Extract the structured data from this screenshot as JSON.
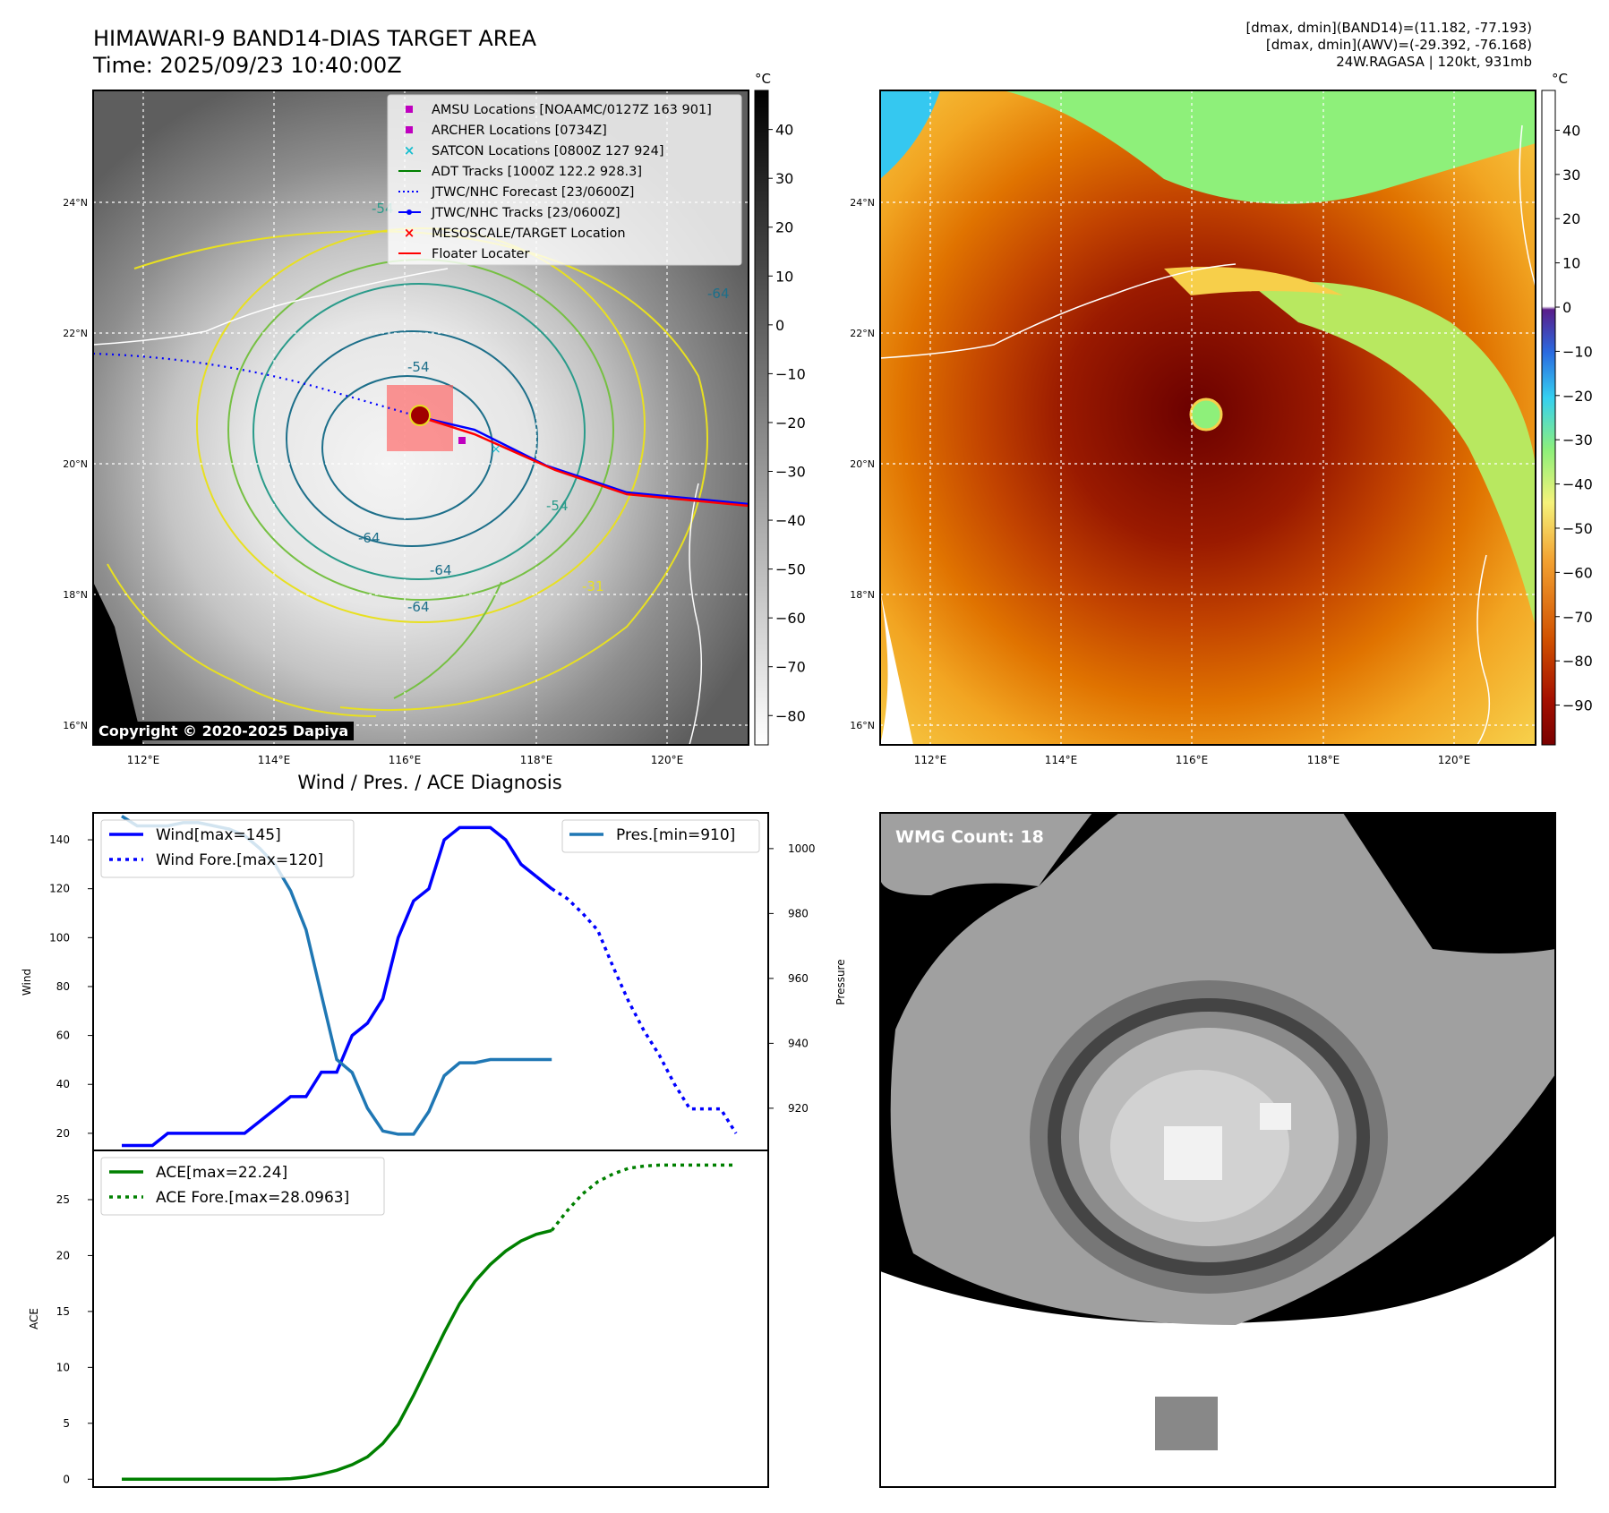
{
  "header": {
    "title_line1": "HIMAWARI-9 BAND14-DIAS TARGET AREA",
    "title_line2": "Time: 2025/09/23 10:40:00Z",
    "stats_line1": "[dmax, dmin](BAND14)=(11.182, -77.193)",
    "stats_line2": "[dmax, dmin](AWV)=(-29.392, -76.168)",
    "stats_line3": "24W.RAGASA | 120kt, 931mb"
  },
  "maps": {
    "unit": "°C",
    "lon_ticks": [
      "112°E",
      "114°E",
      "116°E",
      "118°E",
      "120°E"
    ],
    "lat_ticks": [
      "16°N",
      "18°N",
      "20°N",
      "22°N",
      "24°N"
    ],
    "left_colorbar_ticks": [
      "40",
      "30",
      "20",
      "10",
      "0",
      "−10",
      "−20",
      "−30",
      "−40",
      "−50",
      "−60",
      "−70",
      "−80"
    ],
    "right_colorbar_ticks": [
      "40",
      "30",
      "20",
      "10",
      "0",
      "−10",
      "−20",
      "−30",
      "−40",
      "−50",
      "−60",
      "−70",
      "−80",
      "−90"
    ],
    "legend": [
      {
        "label": "AMSU Locations [NOAAMC/0127Z 163 901]",
        "marker": "square",
        "color": "#bf00bf"
      },
      {
        "label": "ARCHER Locations [0734Z]",
        "marker": "square",
        "color": "#bf00bf"
      },
      {
        "label": "SATCON Locations [0800Z 127 924]",
        "marker": "x",
        "color": "#17becf"
      },
      {
        "label": "ADT Tracks [1000Z 122.2 928.3]",
        "marker": "line",
        "color": "#008000"
      },
      {
        "label": "JTWC/NHC Forecast [23/0600Z]",
        "marker": "dotted",
        "color": "#0000ff"
      },
      {
        "label": "JTWC/NHC Tracks [23/0600Z]",
        "marker": "line-dot",
        "color": "#0000ff"
      },
      {
        "label": "MESOSCALE/TARGET Location",
        "marker": "x",
        "color": "#ff0000"
      },
      {
        "label": "Floater Locater",
        "marker": "line",
        "color": "#ff0000"
      }
    ],
    "contour_labels": [
      "-54",
      "-64",
      "-64",
      "-64",
      "-54",
      "-31",
      "-64",
      "-54"
    ],
    "copyright": "Copyright © 2020-2025 Dapiya"
  },
  "diagnosis": {
    "title": "Wind / Pres. / ACE Diagnosis",
    "wmg_label": "WMG Count: 18"
  },
  "chart_data": [
    {
      "type": "line",
      "ylabel": "Wind",
      "ylabel2": "Pressure",
      "ylim": [
        13,
        151
      ],
      "y2lim": [
        907,
        1011
      ],
      "yticks": [
        20,
        40,
        60,
        80,
        100,
        120,
        140
      ],
      "y2ticks": [
        920,
        940,
        960,
        980,
        1000
      ],
      "x": [
        0,
        1,
        2,
        3,
        4,
        5,
        6,
        7,
        8,
        9,
        10,
        11,
        12,
        13,
        14,
        15,
        16,
        17,
        18,
        19,
        20,
        21,
        22,
        23,
        24,
        25,
        26,
        27,
        28,
        29,
        30,
        31,
        32,
        33,
        34,
        35,
        36,
        37,
        38,
        39,
        40
      ],
      "series": [
        {
          "name": "Wind[max=145]",
          "axis": "left",
          "style": "solid",
          "color": "#0000ff",
          "x": [
            0,
            1,
            2,
            3,
            4,
            5,
            6,
            7,
            8,
            9,
            10,
            11,
            12,
            13,
            14,
            15,
            16,
            17,
            18,
            19,
            20,
            21,
            22,
            23,
            24,
            25,
            26,
            27
          ],
          "values": [
            15,
            15,
            15,
            20,
            20,
            20,
            20,
            20,
            20,
            25,
            30,
            35,
            35,
            45,
            45,
            60,
            65,
            75,
            100,
            115,
            120,
            140,
            145,
            145,
            145,
            140,
            130,
            125
          ]
        },
        {
          "name": "",
          "axis": "left",
          "style": "solid",
          "color": "#0000ff",
          "x": [
            27,
            28
          ],
          "values": [
            125,
            120
          ]
        },
        {
          "name": "Wind Fore.[max=120]",
          "axis": "left",
          "style": "dotted",
          "color": "#0000ff",
          "x": [
            28,
            29,
            30,
            31,
            32,
            33,
            34,
            35,
            36,
            37,
            38,
            39,
            40
          ],
          "values": [
            120,
            116,
            110,
            103,
            88,
            74,
            62,
            52,
            40,
            30,
            30,
            30,
            20
          ]
        },
        {
          "name": "Pres.[min=910]",
          "axis": "right",
          "style": "solid",
          "color": "#1f77b4",
          "x": [
            0,
            1,
            2,
            3,
            4,
            5,
            6,
            7,
            8,
            9,
            10,
            11,
            12,
            13,
            14,
            15,
            16,
            17,
            18,
            19,
            20,
            21,
            22,
            23,
            24,
            25,
            26,
            27,
            28
          ],
          "values": [
            1010,
            1007,
            1007,
            1007,
            1008,
            1008,
            1007,
            1006,
            1004,
            1000,
            995,
            987,
            975,
            955,
            935,
            931,
            920,
            913,
            912,
            912,
            919,
            930,
            934,
            934,
            935,
            935,
            935,
            935,
            935
          ]
        }
      ]
    },
    {
      "type": "line",
      "ylabel": "ACE",
      "ylim": [
        -0.7,
        29.4
      ],
      "yticks": [
        0,
        5,
        10,
        15,
        20,
        25
      ],
      "series": [
        {
          "name": "ACE[max=22.24]",
          "style": "solid",
          "color": "#008000",
          "x": [
            0,
            2,
            4,
            6,
            8,
            10,
            11,
            12,
            13,
            14,
            15,
            16,
            17,
            18,
            19,
            20,
            21,
            22,
            23,
            24,
            25,
            26,
            27,
            28
          ],
          "values": [
            0,
            0,
            0,
            0,
            0,
            0,
            0.05,
            0.2,
            0.45,
            0.8,
            1.3,
            2.0,
            3.2,
            4.9,
            7.5,
            10.3,
            13.1,
            15.7,
            17.7,
            19.2,
            20.4,
            21.3,
            21.9,
            22.24
          ]
        },
        {
          "name": "ACE Fore.[max=28.0963]",
          "style": "dotted",
          "color": "#008000",
          "x": [
            28,
            29,
            30,
            31,
            32,
            33,
            34,
            35,
            36,
            37,
            38,
            39,
            40
          ],
          "values": [
            22.24,
            24.0,
            25.5,
            26.6,
            27.3,
            27.8,
            28.0,
            28.09,
            28.09,
            28.09,
            28.09,
            28.09,
            28.0963
          ]
        }
      ]
    }
  ]
}
